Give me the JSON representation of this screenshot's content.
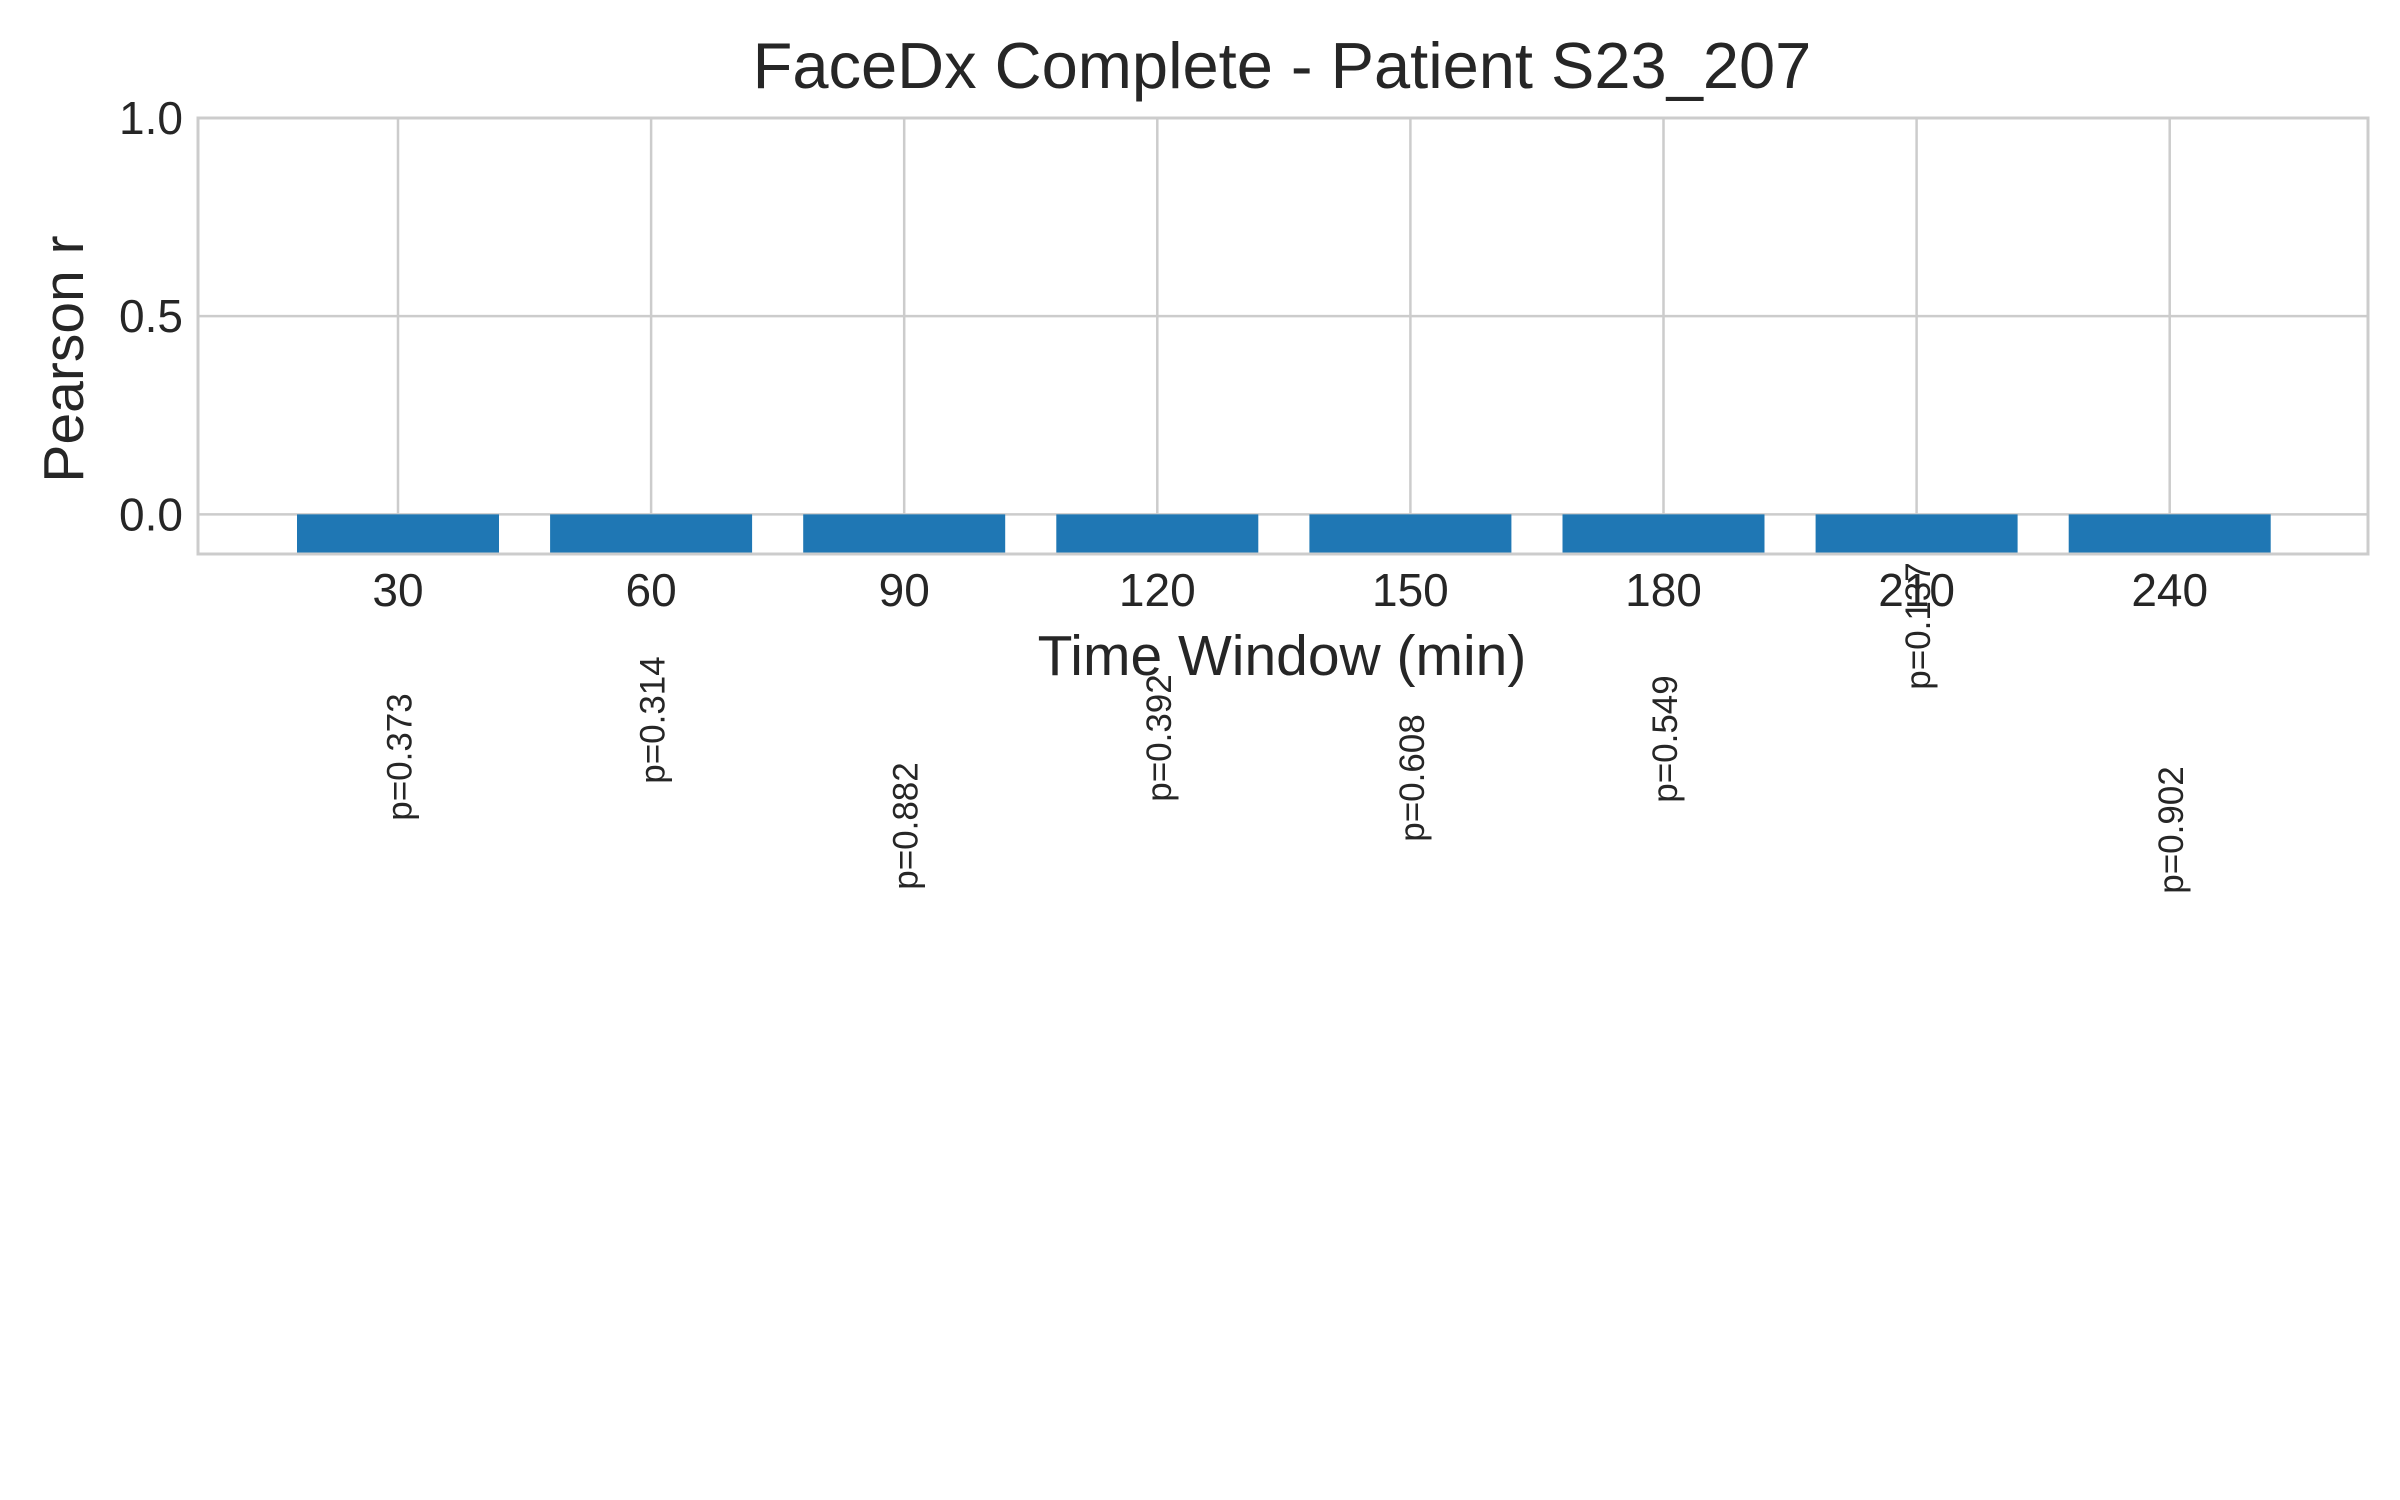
{
  "chart_data": {
    "type": "bar",
    "title": "FaceDx Complete - Patient S23_207",
    "xlabel": "Time Window (min)",
    "ylabel": "Pearson r",
    "categories": [
      "30",
      "60",
      "90",
      "120",
      "150",
      "180",
      "210",
      "240"
    ],
    "values": [
      -0.1,
      -0.1,
      -0.1,
      -0.1,
      -0.1,
      -0.1,
      -0.1,
      -0.1
    ],
    "annotations": [
      "p=0.373",
      "p=0.314",
      "p=0.882",
      "p=0.392",
      "p=0.608",
      "p=0.549",
      "p=0.137",
      "p=0.902"
    ],
    "ylim": [
      -0.1,
      1.0
    ],
    "yticks": [
      "0.0",
      "0.5",
      "1.0"
    ],
    "grid": true,
    "bar_color": "#1f77b4"
  }
}
